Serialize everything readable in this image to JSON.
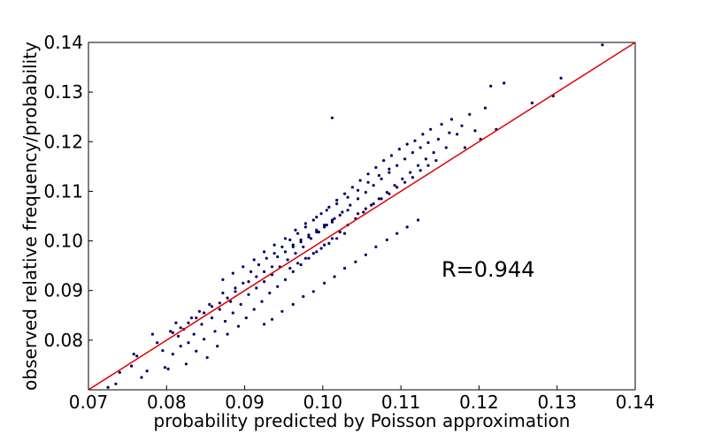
{
  "chart_data": {
    "type": "scatter",
    "xlabel": "probability predicted by Poisson approximation",
    "ylabel": "observed relative frequency/probability",
    "xlim": [
      0.07,
      0.14
    ],
    "ylim": [
      0.07,
      0.14
    ],
    "xticks": [
      "0.07",
      "0.08",
      "0.09",
      "0.10",
      "0.11",
      "0.12",
      "0.13",
      "0.14"
    ],
    "yticks": [
      "0.08",
      "0.09",
      "0.10",
      "0.11",
      "0.12",
      "0.13",
      "0.14"
    ],
    "annotation": "R=0.944",
    "grid": false,
    "point_color": "#000066",
    "line_color": "#e00000",
    "reference_line": {
      "x": [
        0.07,
        0.14
      ],
      "y": [
        0.07,
        0.14
      ]
    },
    "points": [
      [
        0.0725,
        0.0705
      ],
      [
        0.0735,
        0.0712
      ],
      [
        0.074,
        0.0735
      ],
      [
        0.0755,
        0.0748
      ],
      [
        0.0758,
        0.0772
      ],
      [
        0.0762,
        0.0768
      ],
      [
        0.0768,
        0.0725
      ],
      [
        0.0775,
        0.0738
      ],
      [
        0.0782,
        0.0812
      ],
      [
        0.0788,
        0.0795
      ],
      [
        0.0795,
        0.0779
      ],
      [
        0.0798,
        0.0745
      ],
      [
        0.0802,
        0.0742
      ],
      [
        0.0805,
        0.0818
      ],
      [
        0.0808,
        0.0772
      ],
      [
        0.0812,
        0.0835
      ],
      [
        0.0815,
        0.0808
      ],
      [
        0.0818,
        0.0788
      ],
      [
        0.0822,
        0.0822
      ],
      [
        0.0825,
        0.0752
      ],
      [
        0.0828,
        0.0795
      ],
      [
        0.0832,
        0.0845
      ],
      [
        0.0835,
        0.0812
      ],
      [
        0.0838,
        0.0778
      ],
      [
        0.0842,
        0.0858
      ],
      [
        0.0845,
        0.0832
      ],
      [
        0.0848,
        0.0802
      ],
      [
        0.0852,
        0.0765
      ],
      [
        0.0855,
        0.0872
      ],
      [
        0.0858,
        0.0845
      ],
      [
        0.0862,
        0.0818
      ],
      [
        0.0865,
        0.0788
      ],
      [
        0.0868,
        0.0862
      ],
      [
        0.0872,
        0.0895
      ],
      [
        0.0875,
        0.0838
      ],
      [
        0.0878,
        0.0812
      ],
      [
        0.0882,
        0.0878
      ],
      [
        0.0885,
        0.0855
      ],
      [
        0.0888,
        0.0905
      ],
      [
        0.0892,
        0.0828
      ],
      [
        0.0895,
        0.0872
      ],
      [
        0.0898,
        0.0915
      ],
      [
        0.0902,
        0.0845
      ],
      [
        0.0905,
        0.0892
      ],
      [
        0.0908,
        0.0938
      ],
      [
        0.0912,
        0.0862
      ],
      [
        0.0915,
        0.0905
      ],
      [
        0.0918,
        0.0952
      ],
      [
        0.0922,
        0.0878
      ],
      [
        0.0925,
        0.0918
      ],
      [
        0.0928,
        0.0965
      ],
      [
        0.0932,
        0.0895
      ],
      [
        0.0935,
        0.0932
      ],
      [
        0.0938,
        0.0975
      ],
      [
        0.0942,
        0.0908
      ],
      [
        0.0945,
        0.0948
      ],
      [
        0.0948,
        0.0988
      ],
      [
        0.0952,
        0.0922
      ],
      [
        0.0955,
        0.0962
      ],
      [
        0.0958,
        0.1002
      ],
      [
        0.0962,
        0.0938
      ],
      [
        0.0965,
        0.0975
      ],
      [
        0.0968,
        0.1015
      ],
      [
        0.0972,
        0.0952
      ],
      [
        0.0975,
        0.0988
      ],
      [
        0.0978,
        0.1028
      ],
      [
        0.0982,
        0.0965
      ],
      [
        0.0985,
        0.1005
      ],
      [
        0.0988,
        0.1042
      ],
      [
        0.0992,
        0.0978
      ],
      [
        0.0995,
        0.1018
      ],
      [
        0.0998,
        0.1055
      ],
      [
        0.1002,
        0.0992
      ],
      [
        0.1005,
        0.1032
      ],
      [
        0.1008,
        0.1068
      ],
      [
        0.1012,
        0.1005
      ],
      [
        0.1015,
        0.1045
      ],
      [
        0.1018,
        0.1082
      ],
      [
        0.1022,
        0.1018
      ],
      [
        0.1025,
        0.1058
      ],
      [
        0.1028,
        0.1095
      ],
      [
        0.1032,
        0.1032
      ],
      [
        0.1035,
        0.1072
      ],
      [
        0.1038,
        0.1108
      ],
      [
        0.1042,
        0.1045
      ],
      [
        0.1045,
        0.1085
      ],
      [
        0.1048,
        0.1122
      ],
      [
        0.1052,
        0.1058
      ],
      [
        0.1055,
        0.1098
      ],
      [
        0.1058,
        0.1135
      ],
      [
        0.1062,
        0.1072
      ],
      [
        0.1065,
        0.1112
      ],
      [
        0.1068,
        0.1148
      ],
      [
        0.1072,
        0.1085
      ],
      [
        0.1075,
        0.1125
      ],
      [
        0.1078,
        0.1162
      ],
      [
        0.1082,
        0.1098
      ],
      [
        0.1085,
        0.1138
      ],
      [
        0.1088,
        0.1172
      ],
      [
        0.1092,
        0.1112
      ],
      [
        0.1095,
        0.1152
      ],
      [
        0.1098,
        0.1185
      ],
      [
        0.1102,
        0.1125
      ],
      [
        0.1105,
        0.1165
      ],
      [
        0.1108,
        0.1195
      ],
      [
        0.1112,
        0.1138
      ],
      [
        0.1115,
        0.1178
      ],
      [
        0.1118,
        0.1202
      ],
      [
        0.1122,
        0.1152
      ],
      [
        0.1125,
        0.1188
      ],
      [
        0.1128,
        0.1215
      ],
      [
        0.1132,
        0.1165
      ],
      [
        0.1135,
        0.1198
      ],
      [
        0.1138,
        0.1225
      ],
      [
        0.1142,
        0.1178
      ],
      [
        0.1148,
        0.1205
      ],
      [
        0.1152,
        0.1235
      ],
      [
        0.1158,
        0.1188
      ],
      [
        0.1162,
        0.1218
      ],
      [
        0.1165,
        0.1245
      ],
      [
        0.1172,
        0.1215
      ],
      [
        0.1178,
        0.1232
      ],
      [
        0.1182,
        0.1188
      ],
      [
        0.1188,
        0.1255
      ],
      [
        0.1195,
        0.1222
      ],
      [
        0.1202,
        0.1205
      ],
      [
        0.1208,
        0.1268
      ],
      [
        0.1215,
        0.1312
      ],
      [
        0.1222,
        0.1225
      ],
      [
        0.1232,
        0.1318
      ],
      [
        0.1268,
        0.1278
      ],
      [
        0.1295,
        0.1292
      ],
      [
        0.1305,
        0.1328
      ],
      [
        0.1358,
        0.1395
      ],
      [
        0.1012,
        0.1248
      ],
      [
        0.0925,
        0.0832
      ],
      [
        0.0935,
        0.0842
      ],
      [
        0.0948,
        0.0858
      ],
      [
        0.0962,
        0.0872
      ],
      [
        0.0975,
        0.0888
      ],
      [
        0.0988,
        0.0898
      ],
      [
        0.1002,
        0.0915
      ],
      [
        0.1015,
        0.0928
      ],
      [
        0.1028,
        0.0945
      ],
      [
        0.1042,
        0.0958
      ],
      [
        0.1055,
        0.0972
      ],
      [
        0.1068,
        0.0988
      ],
      [
        0.1082,
        0.1002
      ],
      [
        0.1095,
        0.1015
      ],
      [
        0.1108,
        0.1028
      ],
      [
        0.1122,
        0.1042
      ],
      [
        0.0872,
        0.0922
      ],
      [
        0.0885,
        0.0935
      ],
      [
        0.0898,
        0.0948
      ],
      [
        0.0912,
        0.0962
      ],
      [
        0.0925,
        0.0978
      ],
      [
        0.0938,
        0.0992
      ],
      [
        0.0952,
        0.1005
      ],
      [
        0.0965,
        0.1022
      ],
      [
        0.0978,
        0.1035
      ],
      [
        0.0992,
        0.1048
      ],
      [
        0.1005,
        0.1062
      ],
      [
        0.1018,
        0.1075
      ],
      [
        0.1032,
        0.1088
      ],
      [
        0.1045,
        0.1102
      ],
      [
        0.1058,
        0.1118
      ],
      [
        0.1072,
        0.1132
      ],
      [
        0.1085,
        0.1145
      ],
      [
        0.0962,
        0.0992
      ],
      [
        0.0972,
        0.1002
      ],
      [
        0.0982,
        0.1012
      ],
      [
        0.0992,
        0.1022
      ],
      [
        0.1002,
        0.1032
      ],
      [
        0.1012,
        0.1042
      ],
      [
        0.1022,
        0.1052
      ],
      [
        0.1032,
        0.1062
      ],
      [
        0.0958,
        0.0945
      ],
      [
        0.0968,
        0.0955
      ],
      [
        0.0978,
        0.0965
      ],
      [
        0.0988,
        0.0975
      ],
      [
        0.0998,
        0.0985
      ],
      [
        0.1008,
        0.0995
      ],
      [
        0.1018,
        0.1005
      ],
      [
        0.1028,
        0.1015
      ],
      [
        0.0942,
        0.0968
      ],
      [
        0.0952,
        0.0978
      ],
      [
        0.0962,
        0.0988
      ],
      [
        0.0972,
        0.0998
      ],
      [
        0.0982,
        0.1008
      ],
      [
        0.0992,
        0.1018
      ],
      [
        0.1002,
        0.1028
      ],
      [
        0.1012,
        0.1038
      ],
      [
        0.0905,
        0.0918
      ],
      [
        0.0915,
        0.0928
      ],
      [
        0.0925,
        0.0938
      ],
      [
        0.0935,
        0.0948
      ],
      [
        0.1045,
        0.1055
      ],
      [
        0.1055,
        0.1065
      ],
      [
        0.1065,
        0.1075
      ],
      [
        0.1075,
        0.1085
      ],
      [
        0.1085,
        0.1095
      ],
      [
        0.1095,
        0.1108
      ],
      [
        0.1105,
        0.1118
      ],
      [
        0.1115,
        0.1128
      ],
      [
        0.1125,
        0.1142
      ],
      [
        0.1135,
        0.1152
      ],
      [
        0.1145,
        0.1162
      ],
      [
        0.0888,
        0.0898
      ],
      [
        0.0878,
        0.0885
      ],
      [
        0.0868,
        0.0875
      ],
      [
        0.0858,
        0.0868
      ],
      [
        0.0848,
        0.0855
      ],
      [
        0.0838,
        0.0845
      ],
      [
        0.0828,
        0.0835
      ],
      [
        0.0818,
        0.0825
      ],
      [
        0.0808,
        0.0815
      ]
    ]
  }
}
